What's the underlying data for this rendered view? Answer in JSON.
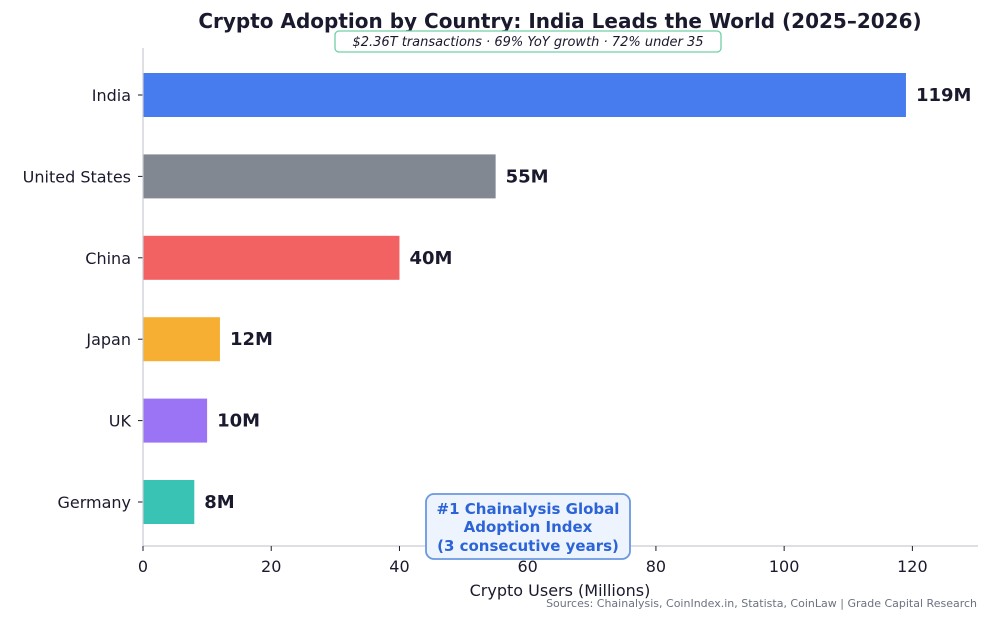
{
  "chart_data": {
    "type": "bar",
    "orientation": "horizontal",
    "title": "Crypto Adoption by Country: India Leads the World (2025–2026)",
    "subtitle": "$2.36T transactions · 69% YoY growth · 72% under 35",
    "categories": [
      "India",
      "United States",
      "China",
      "Japan",
      "UK",
      "Germany"
    ],
    "values": [
      119,
      55,
      40,
      12,
      10,
      8
    ],
    "value_labels": [
      "119M",
      "55M",
      "40M",
      "12M",
      "10M",
      "8M"
    ],
    "colors": [
      "#477cef",
      "#828892",
      "#f26263",
      "#f6ae33",
      "#9b74f5",
      "#38c3b4"
    ],
    "xlabel": "Crypto Users (Millions)",
    "ylabel": "",
    "xlim": [
      0,
      130
    ],
    "xticks": [
      0,
      20,
      40,
      60,
      80,
      100,
      120
    ],
    "grid": false,
    "annotation": {
      "lines": [
        "#1 Chainalysis Global",
        "Adoption Index",
        "(3 consecutive years)"
      ],
      "color": "#2c64d8"
    },
    "source": "Sources: Chainalysis, CoinIndex.in, Statista, CoinLaw | Grade Capital Research"
  }
}
